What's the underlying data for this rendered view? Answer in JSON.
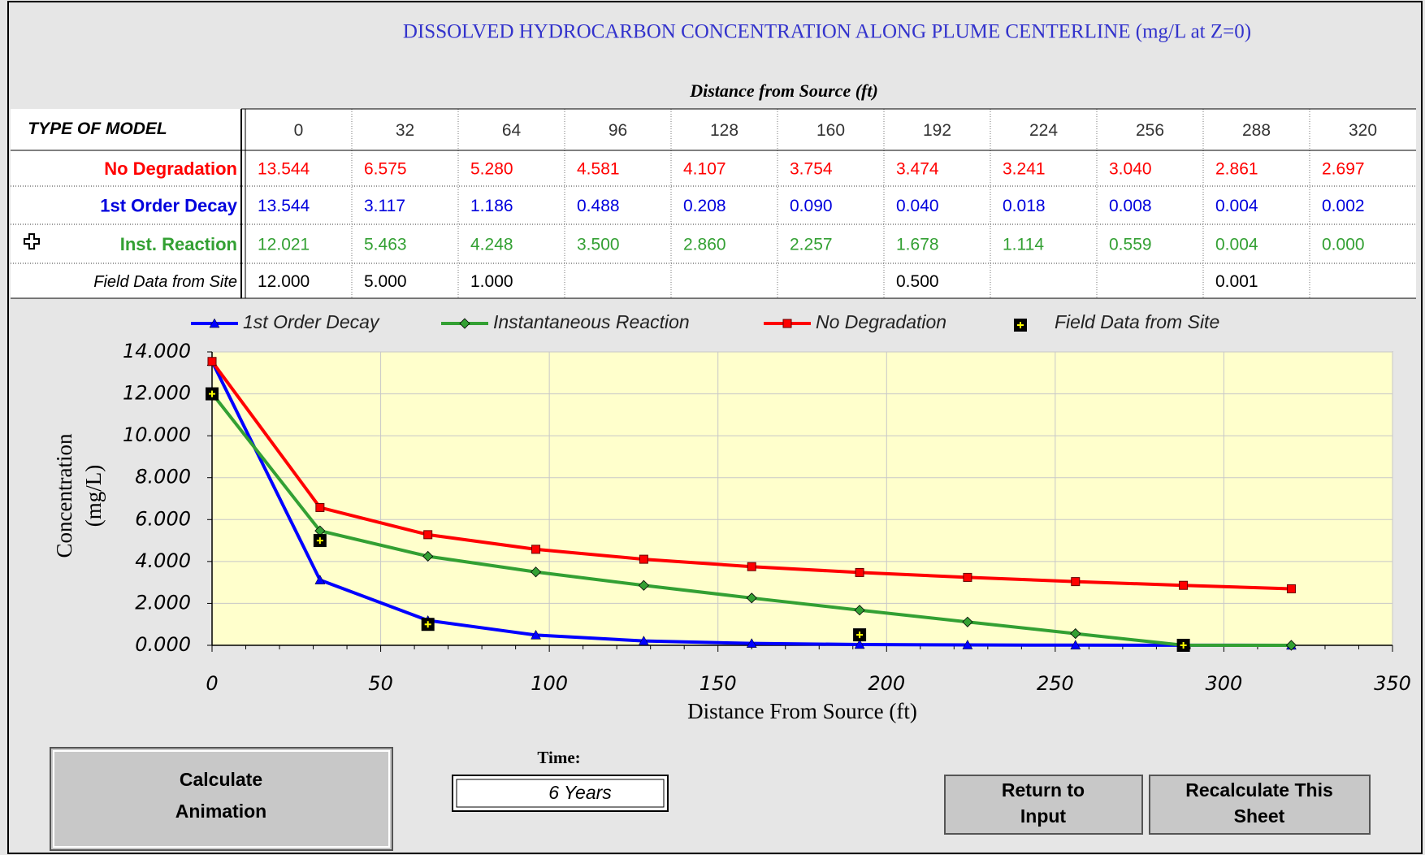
{
  "title": "DISSOLVED HYDROCARBON CONCENTRATION ALONG PLUME CENTERLINE (mg/L at Z=0)",
  "table": {
    "caption": "Distance from Source (ft)",
    "corner": "TYPE OF MODEL",
    "columns": [
      0,
      32,
      64,
      96,
      128,
      160,
      192,
      224,
      256,
      288,
      320
    ],
    "rows": [
      {
        "label": "No Degradation",
        "color": "#ff0000",
        "cells": [
          "13.544",
          "6.575",
          "5.280",
          "4.581",
          "4.107",
          "3.754",
          "3.474",
          "3.241",
          "3.040",
          "2.861",
          "2.697"
        ]
      },
      {
        "label": "1st Order Decay",
        "color": "#0000dd",
        "cells": [
          "13.544",
          "3.117",
          "1.186",
          "0.488",
          "0.208",
          "0.090",
          "0.040",
          "0.018",
          "0.008",
          "0.004",
          "0.002"
        ]
      },
      {
        "label": "Inst. Reaction",
        "color": "#33a033",
        "cells": [
          "12.021",
          "5.463",
          "4.248",
          "3.500",
          "2.860",
          "2.257",
          "1.678",
          "1.114",
          "0.559",
          "0.004",
          "0.000"
        ]
      },
      {
        "label": "Field Data from Site",
        "color": "#000000",
        "cells": [
          "12.000",
          "5.000",
          "1.000",
          null,
          null,
          null,
          "0.500",
          null,
          null,
          "0.001",
          null
        ]
      }
    ]
  },
  "chart_data": {
    "type": "line",
    "x": [
      0,
      32,
      64,
      96,
      128,
      160,
      192,
      224,
      256,
      288,
      320
    ],
    "series": [
      {
        "name": "1st Order Decay",
        "color": "#0000ff",
        "marker": "triangle",
        "values": [
          13.544,
          3.117,
          1.186,
          0.488,
          0.208,
          0.09,
          0.04,
          0.018,
          0.008,
          0.004,
          0.002
        ]
      },
      {
        "name": "Instantaneous Reaction",
        "color": "#33a033",
        "marker": "diamond",
        "values": [
          12.021,
          5.463,
          4.248,
          3.5,
          2.86,
          2.257,
          1.678,
          1.114,
          0.559,
          0.004,
          0.0
        ]
      },
      {
        "name": "No Degradation",
        "color": "#ff0000",
        "marker": "square",
        "values": [
          13.544,
          6.575,
          5.28,
          4.581,
          4.107,
          3.754,
          3.474,
          3.241,
          3.04,
          2.861,
          2.697
        ]
      },
      {
        "name": "Field Data from Site",
        "type": "scatter",
        "color": "#000000",
        "marker": "plus-square",
        "x": [
          0,
          32,
          64,
          192,
          288
        ],
        "values": [
          12.0,
          5.0,
          1.0,
          0.5,
          0.001
        ]
      }
    ],
    "xlabel": "Distance From Source (ft)",
    "ylabel": [
      "Concentration",
      "(mg/L)"
    ],
    "xlim": [
      0,
      350
    ],
    "ylim": [
      0,
      14
    ],
    "xticks": [
      0,
      50,
      100,
      150,
      200,
      250,
      300,
      350
    ],
    "yticks": [
      {
        "value": 0,
        "label": "0.000"
      },
      {
        "value": 2,
        "label": "2.000"
      },
      {
        "value": 4,
        "label": "4.000"
      },
      {
        "value": 6,
        "label": "6.000"
      },
      {
        "value": 8,
        "label": "8.000"
      },
      {
        "value": 10,
        "label": "10.000"
      },
      {
        "value": 12,
        "label": "12.000"
      },
      {
        "value": 14,
        "label": "14.000"
      }
    ],
    "grid": true,
    "legend": "top",
    "plot_background": "#ffffcc"
  },
  "controls": {
    "calculate": [
      "Calculate",
      "Animation"
    ],
    "time_label": "Time:",
    "time_value": "6 Years",
    "return": [
      "Return to",
      "Input"
    ],
    "recalculate": [
      "Recalculate This",
      "Sheet"
    ]
  }
}
